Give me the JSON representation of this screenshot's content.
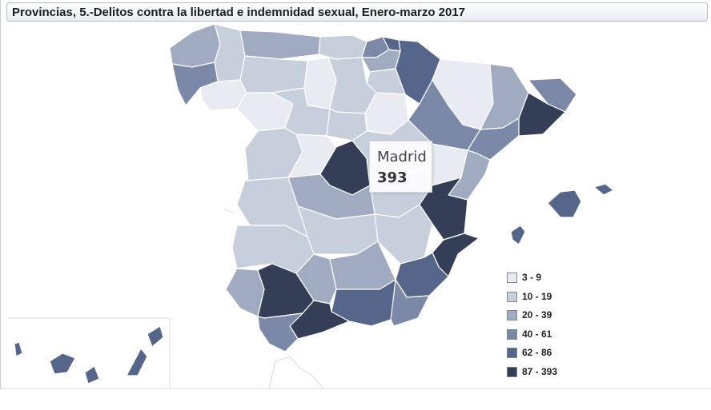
{
  "title": "Provincias, 5.-Delitos contra la libertad e indemnidad sexual, Enero-marzo 2017",
  "tooltip": {
    "name": "Madrid",
    "value": "393"
  },
  "legend": [
    {
      "label": "3 - 9",
      "color": "#e8ebf1"
    },
    {
      "label": "10 - 19",
      "color": "#c8cfdc"
    },
    {
      "label": "20 - 39",
      "color": "#a0abc2"
    },
    {
      "label": "40 - 61",
      "color": "#7b88a8"
    },
    {
      "label": "62 - 86",
      "color": "#56658a"
    },
    {
      "label": "87 - 393",
      "color": "#343e56"
    }
  ],
  "colors": {
    "border": "#ffffff",
    "frame": "#c8ccd2",
    "title_bg": "#eef1f5"
  }
}
